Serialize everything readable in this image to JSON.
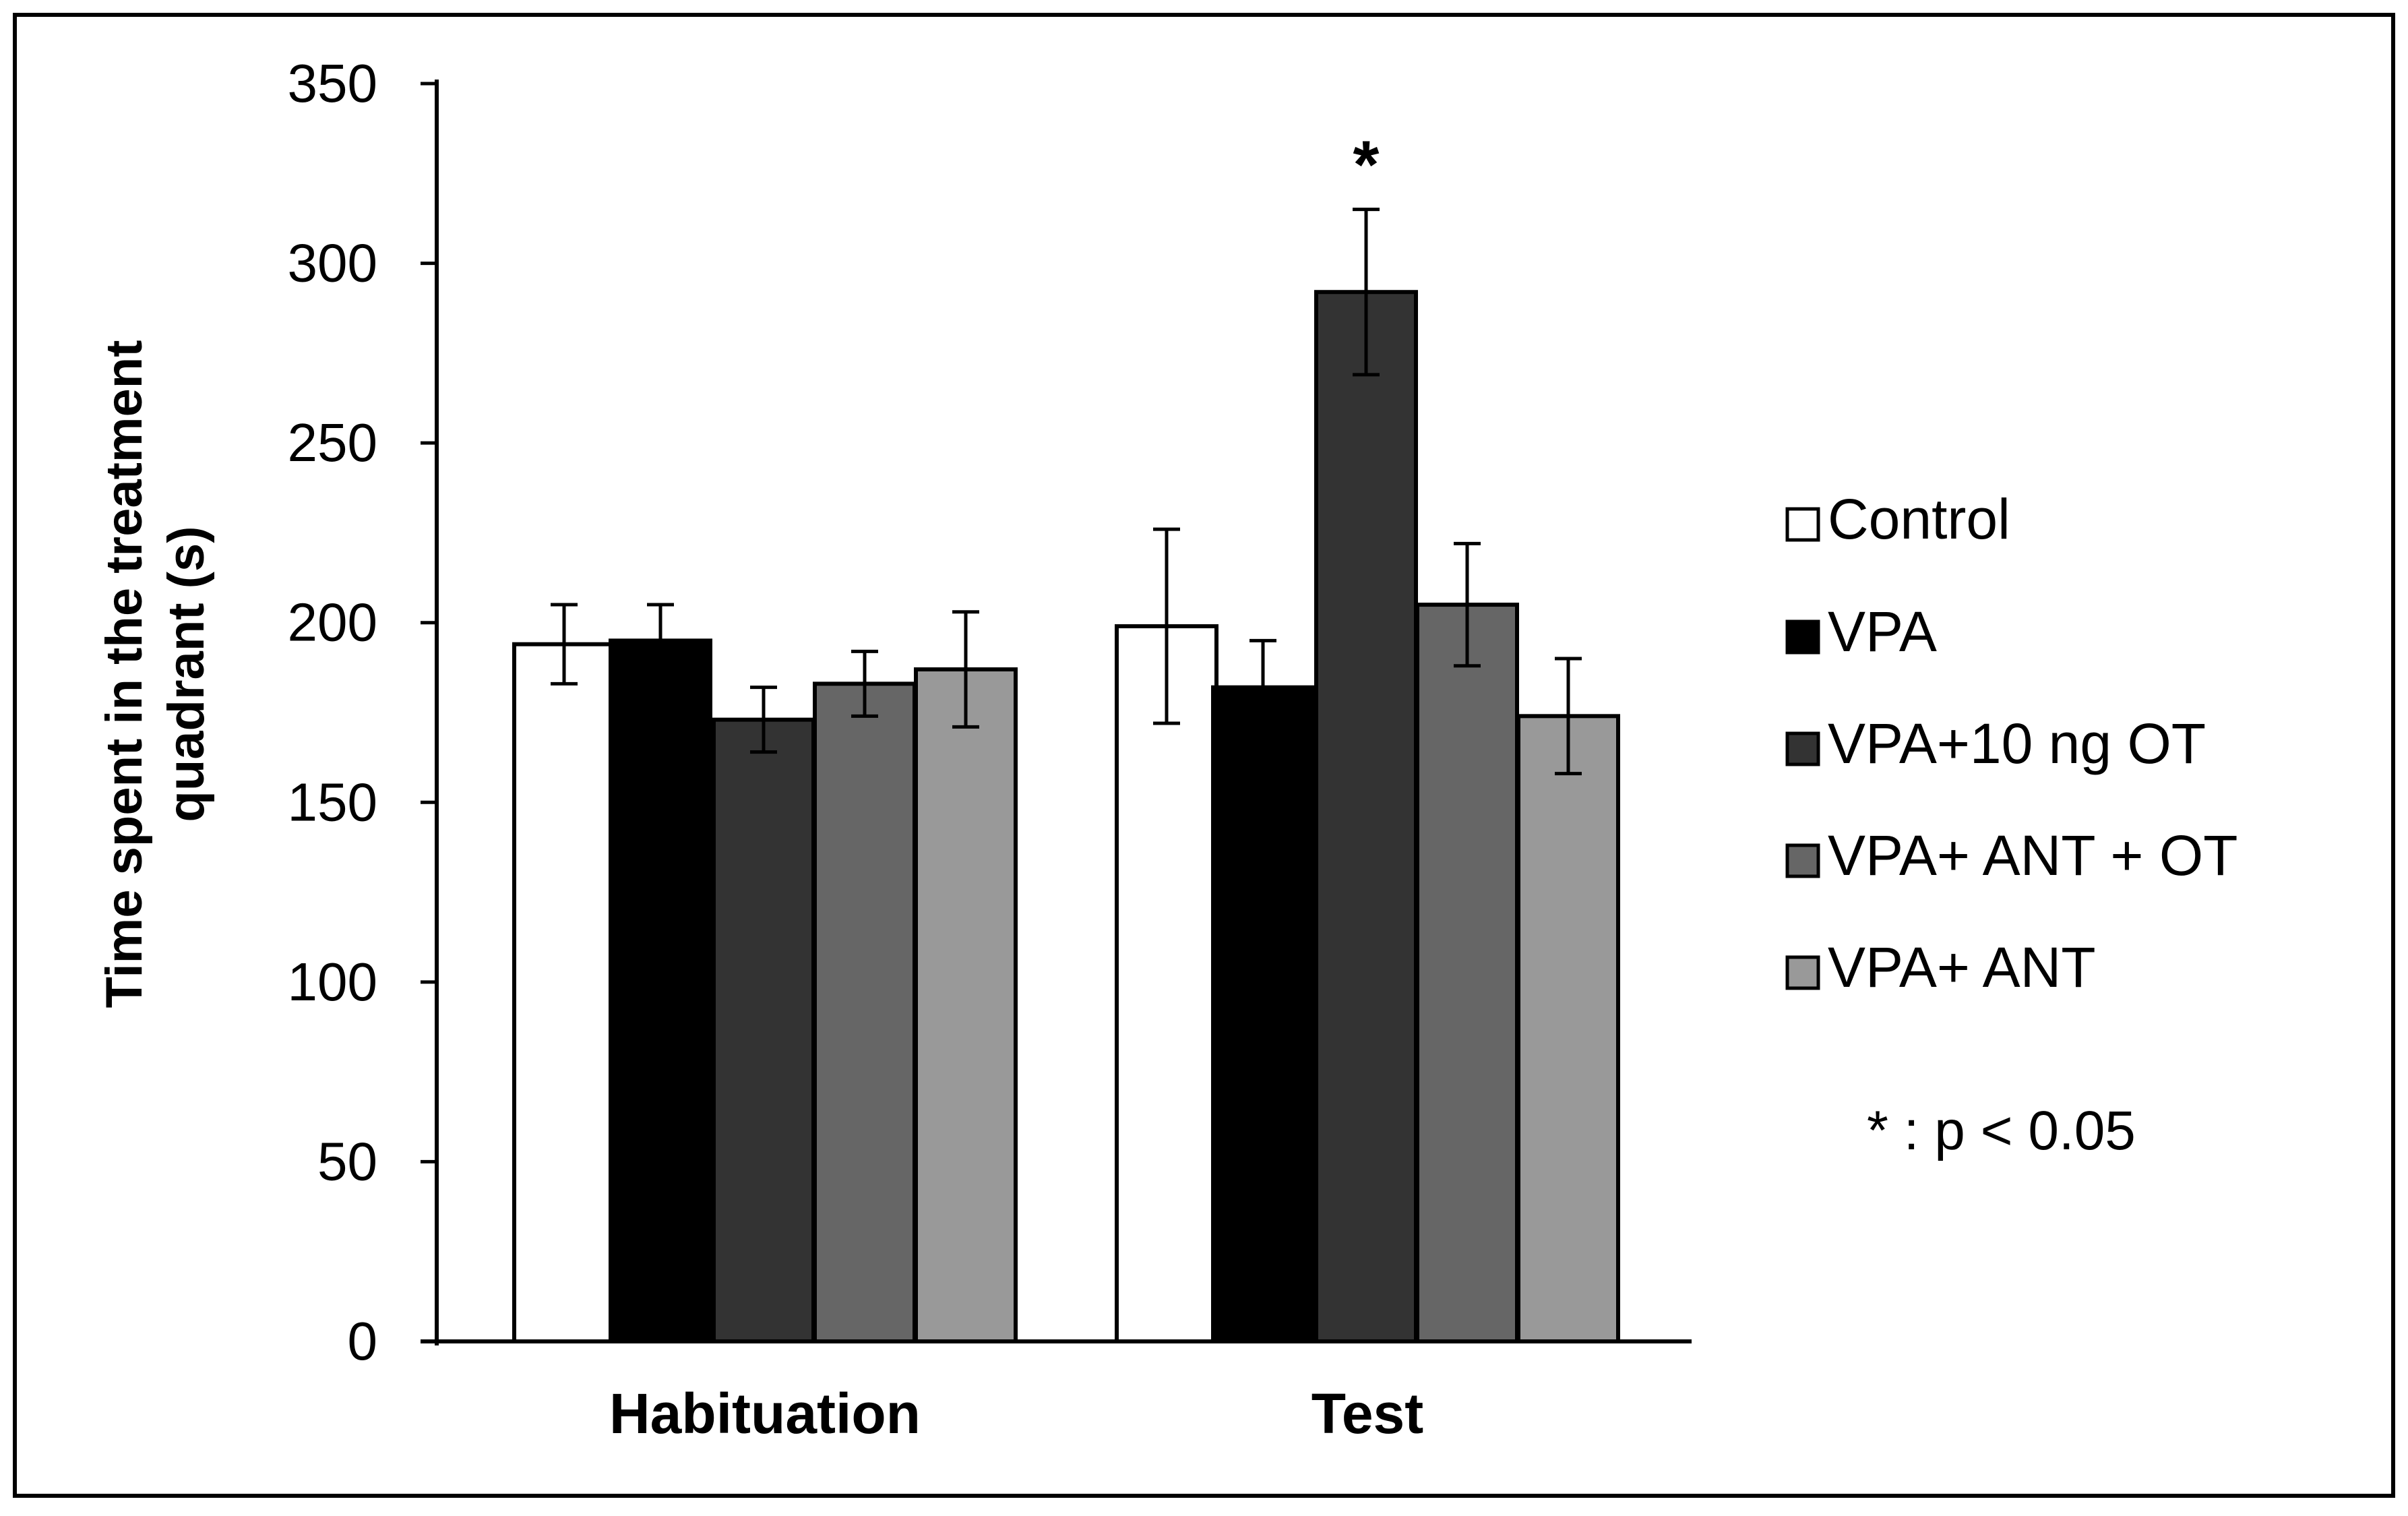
{
  "chart_data": {
    "type": "bar",
    "title": "",
    "xlabel": "",
    "ylabel": "Time spent in the treatment quadrant (s)",
    "ylabel_lines": [
      "Time spent in the treatment",
      "quadrant (s)"
    ],
    "ylim": [
      0,
      350
    ],
    "yticks": [
      0,
      50,
      100,
      150,
      200,
      250,
      300,
      350
    ],
    "categories": [
      "Habituation",
      "Test"
    ],
    "series": [
      {
        "name": "Control",
        "color": "#ffffff",
        "values": [
          194,
          199
        ],
        "errors": [
          11,
          27
        ]
      },
      {
        "name": "VPA",
        "color": "#000000",
        "values": [
          195,
          182
        ],
        "errors": [
          10,
          13
        ]
      },
      {
        "name": "VPA+10 ng OT",
        "color": "#333333",
        "values": [
          173,
          292
        ],
        "errors": [
          9,
          23
        ]
      },
      {
        "name": "VPA+ ANT + OT",
        "color": "#666666",
        "values": [
          183,
          205
        ],
        "errors": [
          9,
          17
        ]
      },
      {
        "name": "VPA+ ANT",
        "color": "#999999",
        "values": [
          187,
          174
        ],
        "errors": [
          16,
          16
        ]
      }
    ],
    "annotations": [
      {
        "category": "Test",
        "series": "VPA+10 ng OT",
        "text": "*"
      }
    ],
    "significance_note": "* : p < 0.05",
    "legend_position": "right",
    "grid": false
  }
}
